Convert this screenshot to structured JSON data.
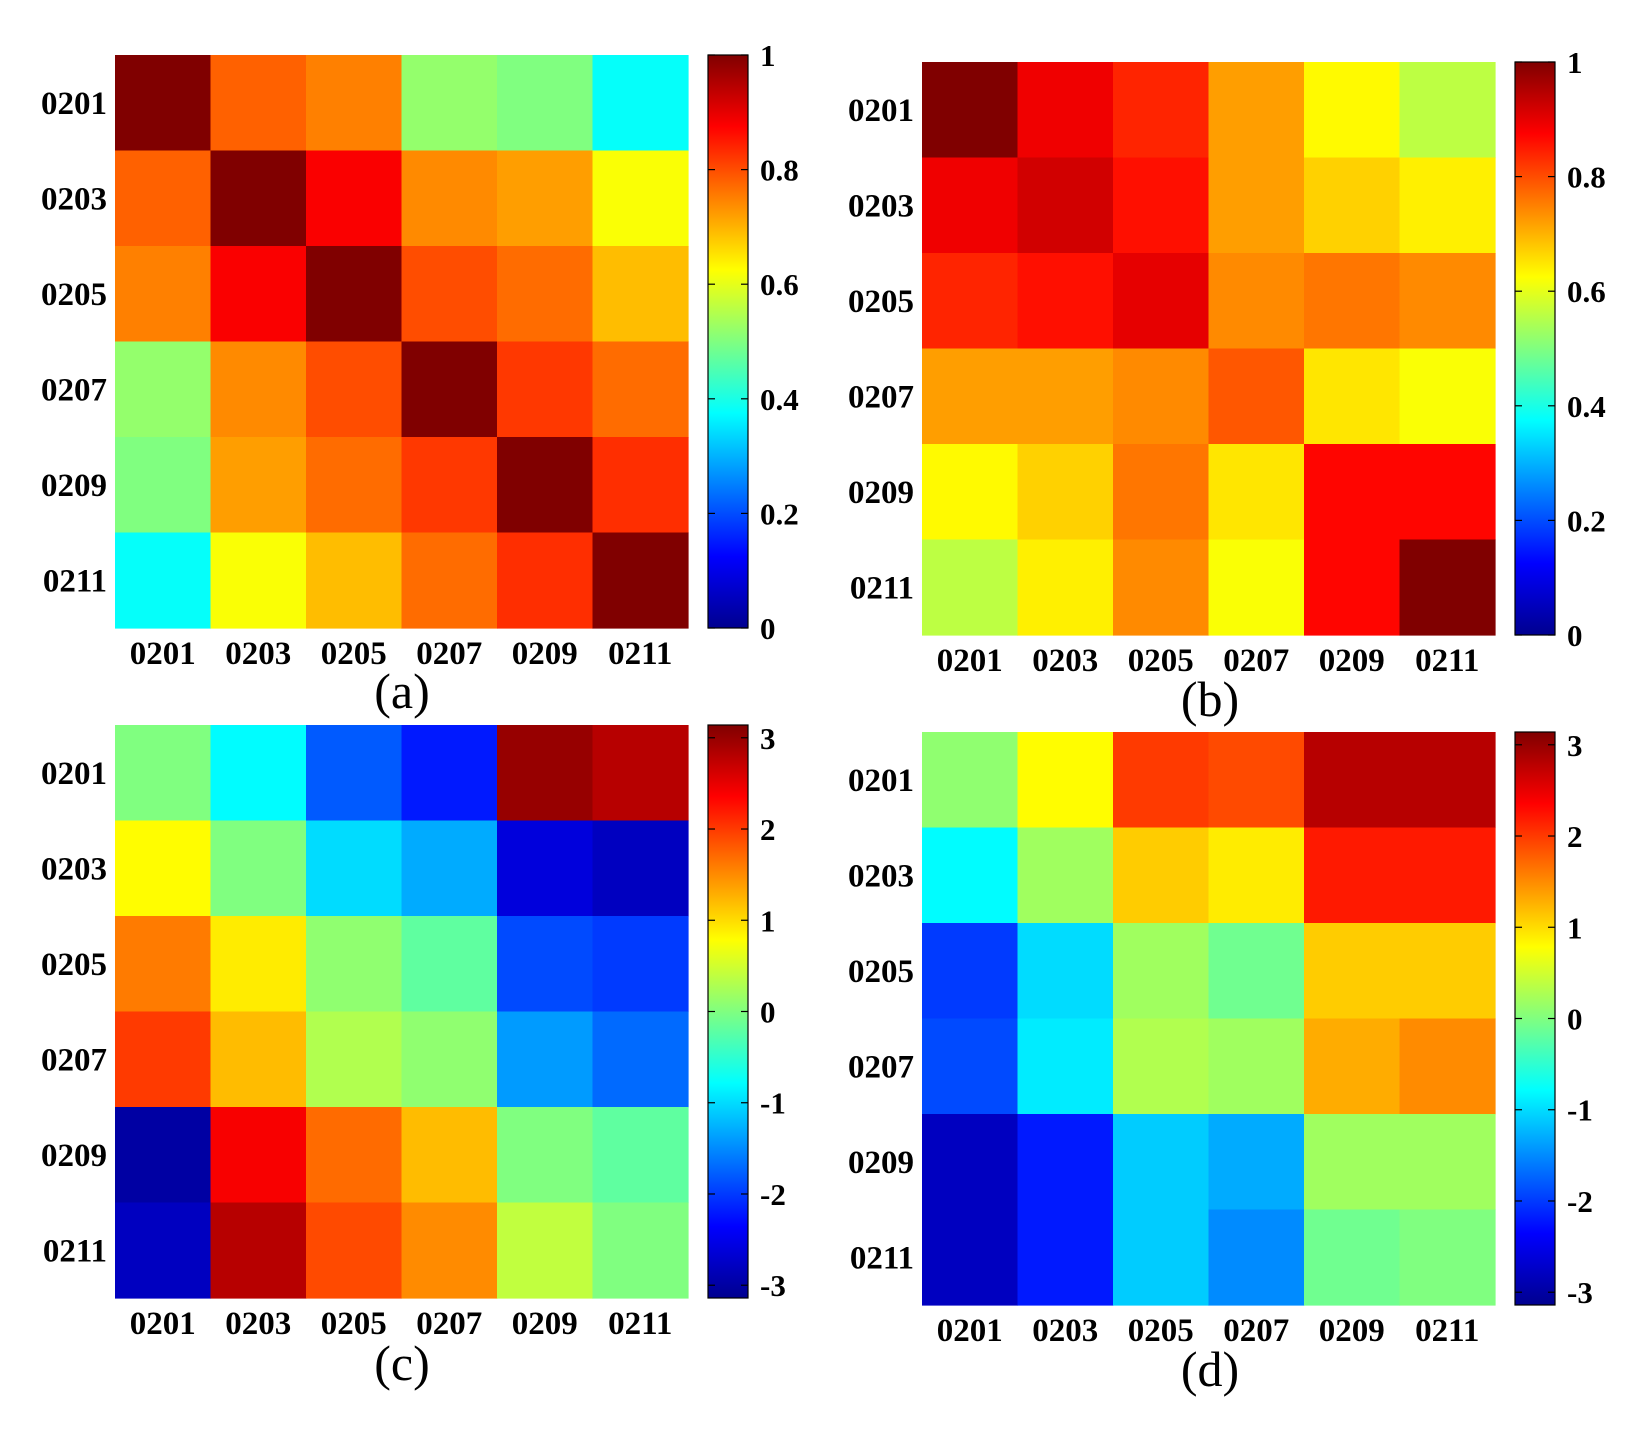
{
  "figure": {
    "colormap": "jet",
    "colormap_stops": [
      "#00008f",
      "#0000ff",
      "#00ffff",
      "#80ff80",
      "#ffff00",
      "#ff8000",
      "#ff0000",
      "#800000"
    ]
  },
  "chart_data": [
    {
      "type": "heatmap",
      "caption": "(a)",
      "row_labels": [
        "0201",
        "0203",
        "0205",
        "0207",
        "0209",
        "0211"
      ],
      "col_labels": [
        "0201",
        "0203",
        "0205",
        "0207",
        "0209",
        "0211"
      ],
      "values": [
        [
          1.0,
          0.78,
          0.75,
          0.52,
          0.5,
          0.38
        ],
        [
          0.78,
          1.0,
          0.88,
          0.74,
          0.72,
          0.62
        ],
        [
          0.75,
          0.88,
          1.0,
          0.8,
          0.77,
          0.69
        ],
        [
          0.52,
          0.74,
          0.8,
          1.0,
          0.82,
          0.77
        ],
        [
          0.5,
          0.72,
          0.77,
          0.82,
          1.0,
          0.83
        ],
        [
          0.38,
          0.62,
          0.69,
          0.77,
          0.83,
          1.0
        ]
      ],
      "colorbar": {
        "range": [
          0,
          1
        ],
        "ticks": [
          0,
          0.2,
          0.4,
          0.6,
          0.8,
          1
        ],
        "tick_labels": [
          "0",
          "0.2",
          "0.4",
          "0.6",
          "0.8",
          "1"
        ]
      }
    },
    {
      "type": "heatmap",
      "caption": "(b)",
      "row_labels": [
        "0201",
        "0203",
        "0205",
        "0207",
        "0209",
        "0211"
      ],
      "col_labels": [
        "0201",
        "0203",
        "0205",
        "0207",
        "0209",
        "0211"
      ],
      "values": [
        [
          1.0,
          0.89,
          0.84,
          0.72,
          0.63,
          0.56
        ],
        [
          0.89,
          0.92,
          0.86,
          0.72,
          0.67,
          0.64
        ],
        [
          0.84,
          0.86,
          0.9,
          0.74,
          0.76,
          0.74
        ],
        [
          0.72,
          0.72,
          0.74,
          0.79,
          0.65,
          0.62
        ],
        [
          0.63,
          0.67,
          0.76,
          0.65,
          0.87,
          0.87
        ],
        [
          0.56,
          0.64,
          0.74,
          0.62,
          0.87,
          1.0
        ]
      ],
      "colorbar": {
        "range": [
          0,
          1
        ],
        "ticks": [
          0,
          0.2,
          0.4,
          0.6,
          0.8,
          1
        ],
        "tick_labels": [
          "0",
          "0.2",
          "0.4",
          "0.6",
          "0.8",
          "1"
        ]
      }
    },
    {
      "type": "heatmap",
      "caption": "(c)",
      "row_labels": [
        "0201",
        "0203",
        "0205",
        "0207",
        "0209",
        "0211"
      ],
      "col_labels": [
        "0201",
        "0203",
        "0205",
        "0207",
        "0209",
        "0211"
      ],
      "values": [
        [
          0.0,
          -0.8,
          -1.8,
          -2.2,
          3.0,
          2.8
        ],
        [
          0.8,
          0.0,
          -1.0,
          -1.3,
          -2.6,
          -2.8
        ],
        [
          1.6,
          0.9,
          0.1,
          -0.2,
          -1.9,
          -2.0
        ],
        [
          2.0,
          1.2,
          0.3,
          0.1,
          -1.4,
          -1.7
        ],
        [
          -3.0,
          2.4,
          1.7,
          1.2,
          0.0,
          -0.2
        ],
        [
          -2.8,
          2.8,
          1.9,
          1.5,
          0.4,
          0.0
        ]
      ],
      "colorbar": {
        "range": [
          -3.14,
          3.14
        ],
        "ticks": [
          -3,
          -2,
          -1,
          0,
          1,
          2,
          3
        ],
        "tick_labels": [
          "-3",
          "-2",
          "-1",
          "0",
          "1",
          "2",
          "3"
        ]
      }
    },
    {
      "type": "heatmap",
      "caption": "(d)",
      "row_labels": [
        "0201",
        "0203",
        "0205",
        "0207",
        "0209",
        "0211"
      ],
      "col_labels": [
        "0201",
        "0203",
        "0205",
        "0207",
        "0209",
        "0211"
      ],
      "values": [
        [
          0.1,
          0.8,
          2.0,
          1.9,
          2.8,
          2.8
        ],
        [
          -0.8,
          0.2,
          1.1,
          0.9,
          2.2,
          2.2
        ],
        [
          -2.0,
          -1.0,
          0.2,
          -0.1,
          1.1,
          1.1
        ],
        [
          -1.9,
          -0.9,
          0.3,
          0.2,
          1.3,
          1.5
        ],
        [
          -2.8,
          -2.2,
          -1.1,
          -1.3,
          0.2,
          0.2
        ],
        [
          -2.8,
          -2.2,
          -1.1,
          -1.5,
          -0.1,
          0.0
        ]
      ],
      "colorbar": {
        "range": [
          -3.14,
          3.14
        ],
        "ticks": [
          -3,
          -2,
          -1,
          0,
          1,
          2,
          3
        ],
        "tick_labels": [
          "-3",
          "-2",
          "-1",
          "0",
          "1",
          "2",
          "3"
        ]
      }
    }
  ]
}
